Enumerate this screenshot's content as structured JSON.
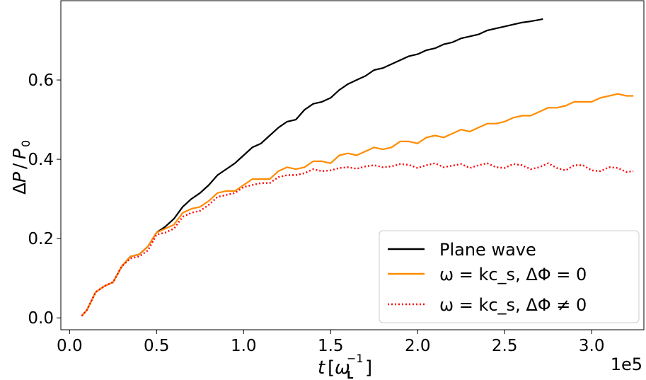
{
  "chart_data": {
    "type": "line",
    "title": "",
    "xlabel": "t [ω_L⁻¹]",
    "ylabel": "ΔP / P₀",
    "x_offset_label": "1e5",
    "xlim": [
      -0.05,
      3.3
    ],
    "ylim": [
      -0.03,
      0.8
    ],
    "x_ticks": [
      0.0,
      0.5,
      1.0,
      1.5,
      2.0,
      2.5,
      3.0
    ],
    "x_tick_labels": [
      "0.0",
      "0.5",
      "1.0",
      "1.5",
      "2.0",
      "2.5",
      "3.0"
    ],
    "y_ticks": [
      0.0,
      0.2,
      0.4,
      0.6
    ],
    "y_tick_labels": [
      "0.0",
      "0.2",
      "0.4",
      "0.6"
    ],
    "grid": false,
    "legend_position": "lower-right",
    "series": [
      {
        "name": "Plane wave",
        "color": "#000000",
        "style": "solid",
        "x": [
          0.07,
          0.1,
          0.15,
          0.2,
          0.25,
          0.3,
          0.35,
          0.4,
          0.45,
          0.5,
          0.55,
          0.6,
          0.65,
          0.7,
          0.75,
          0.8,
          0.85,
          0.9,
          0.95,
          1.0,
          1.05,
          1.1,
          1.15,
          1.2,
          1.25,
          1.3,
          1.35,
          1.4,
          1.45,
          1.5,
          1.55,
          1.6,
          1.65,
          1.7,
          1.75,
          1.8,
          1.85,
          1.9,
          1.95,
          2.0,
          2.05,
          2.1,
          2.15,
          2.2,
          2.25,
          2.3,
          2.35,
          2.4,
          2.45,
          2.5,
          2.55,
          2.6,
          2.65,
          2.7,
          2.72
        ],
        "y": [
          0.005,
          0.02,
          0.065,
          0.08,
          0.09,
          0.13,
          0.155,
          0.16,
          0.18,
          0.215,
          0.23,
          0.25,
          0.28,
          0.3,
          0.315,
          0.335,
          0.36,
          0.375,
          0.39,
          0.41,
          0.43,
          0.44,
          0.46,
          0.48,
          0.495,
          0.5,
          0.525,
          0.54,
          0.545,
          0.555,
          0.575,
          0.59,
          0.6,
          0.61,
          0.625,
          0.63,
          0.64,
          0.65,
          0.66,
          0.665,
          0.675,
          0.68,
          0.69,
          0.695,
          0.705,
          0.71,
          0.715,
          0.725,
          0.73,
          0.735,
          0.74,
          0.745,
          0.748,
          0.752,
          0.754
        ]
      },
      {
        "name": "ω = kc_s, ΔΦ = 0",
        "color": "#ff8c00",
        "style": "solid",
        "x": [
          0.07,
          0.1,
          0.15,
          0.2,
          0.25,
          0.3,
          0.35,
          0.4,
          0.45,
          0.5,
          0.55,
          0.6,
          0.65,
          0.7,
          0.75,
          0.8,
          0.85,
          0.9,
          0.95,
          1.0,
          1.05,
          1.1,
          1.15,
          1.2,
          1.25,
          1.3,
          1.35,
          1.4,
          1.45,
          1.5,
          1.55,
          1.6,
          1.65,
          1.7,
          1.75,
          1.8,
          1.85,
          1.9,
          1.95,
          2.0,
          2.05,
          2.1,
          2.15,
          2.2,
          2.25,
          2.3,
          2.35,
          2.4,
          2.45,
          2.5,
          2.55,
          2.6,
          2.65,
          2.7,
          2.75,
          2.8,
          2.85,
          2.9,
          2.95,
          3.0,
          3.05,
          3.1,
          3.15,
          3.2,
          3.24
        ],
        "y": [
          0.005,
          0.02,
          0.065,
          0.08,
          0.09,
          0.13,
          0.155,
          0.16,
          0.18,
          0.215,
          0.225,
          0.235,
          0.265,
          0.275,
          0.28,
          0.295,
          0.315,
          0.32,
          0.32,
          0.335,
          0.35,
          0.35,
          0.35,
          0.37,
          0.38,
          0.375,
          0.38,
          0.395,
          0.395,
          0.39,
          0.41,
          0.415,
          0.41,
          0.42,
          0.43,
          0.425,
          0.43,
          0.445,
          0.445,
          0.44,
          0.455,
          0.46,
          0.455,
          0.465,
          0.475,
          0.47,
          0.48,
          0.49,
          0.49,
          0.495,
          0.505,
          0.51,
          0.51,
          0.52,
          0.53,
          0.53,
          0.535,
          0.545,
          0.545,
          0.545,
          0.555,
          0.56,
          0.565,
          0.56,
          0.56
        ]
      },
      {
        "name": "ω = kc_s, ΔΦ ≠ 0",
        "color": "#ff0000",
        "style": "dotted",
        "x": [
          0.07,
          0.1,
          0.15,
          0.2,
          0.25,
          0.3,
          0.35,
          0.4,
          0.45,
          0.5,
          0.55,
          0.6,
          0.65,
          0.7,
          0.75,
          0.8,
          0.85,
          0.9,
          0.95,
          1.0,
          1.05,
          1.1,
          1.15,
          1.2,
          1.25,
          1.3,
          1.35,
          1.4,
          1.45,
          1.5,
          1.55,
          1.6,
          1.65,
          1.7,
          1.75,
          1.8,
          1.85,
          1.9,
          1.95,
          2.0,
          2.05,
          2.1,
          2.15,
          2.2,
          2.25,
          2.3,
          2.35,
          2.4,
          2.45,
          2.5,
          2.55,
          2.6,
          2.65,
          2.7,
          2.75,
          2.8,
          2.85,
          2.9,
          2.95,
          3.0,
          3.05,
          3.1,
          3.15,
          3.2,
          3.24
        ],
        "y": [
          0.005,
          0.02,
          0.065,
          0.08,
          0.09,
          0.13,
          0.15,
          0.155,
          0.17,
          0.21,
          0.215,
          0.225,
          0.255,
          0.265,
          0.27,
          0.285,
          0.305,
          0.31,
          0.315,
          0.33,
          0.335,
          0.34,
          0.34,
          0.355,
          0.36,
          0.36,
          0.365,
          0.375,
          0.37,
          0.372,
          0.378,
          0.38,
          0.376,
          0.382,
          0.385,
          0.38,
          0.382,
          0.388,
          0.386,
          0.378,
          0.385,
          0.39,
          0.38,
          0.384,
          0.388,
          0.378,
          0.385,
          0.39,
          0.38,
          0.378,
          0.388,
          0.385,
          0.375,
          0.38,
          0.39,
          0.378,
          0.372,
          0.385,
          0.385,
          0.372,
          0.37,
          0.38,
          0.378,
          0.368,
          0.37
        ]
      }
    ]
  }
}
